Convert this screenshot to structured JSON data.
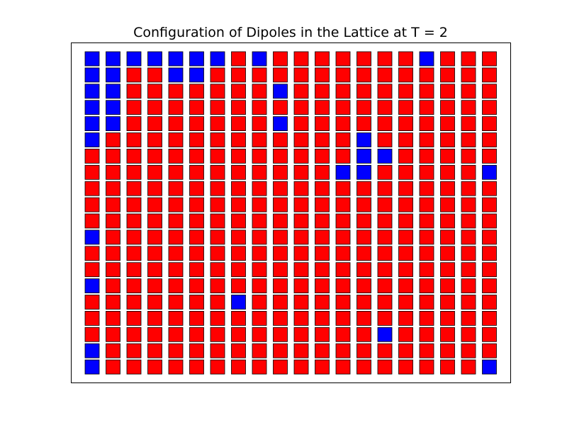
{
  "chart_data": {
    "type": "heatmap",
    "title": "Configuration of Dipoles in the Lattice at T = 2",
    "xlabel": "",
    "ylabel": "",
    "grid": false,
    "legend": "none",
    "rows": 20,
    "cols": 20,
    "states": {
      "up": 1,
      "down": -1
    },
    "colors": {
      "up": "#0000ff",
      "down": "#ff0000",
      "edge": "#000000"
    },
    "values": [
      [
        1,
        1,
        1,
        1,
        1,
        1,
        1,
        -1,
        1,
        -1,
        -1,
        -1,
        -1,
        -1,
        -1,
        -1,
        1,
        -1,
        -1,
        -1
      ],
      [
        1,
        1,
        -1,
        -1,
        1,
        1,
        -1,
        -1,
        -1,
        -1,
        -1,
        -1,
        -1,
        -1,
        -1,
        -1,
        -1,
        -1,
        -1,
        -1
      ],
      [
        1,
        1,
        -1,
        -1,
        -1,
        -1,
        -1,
        -1,
        -1,
        1,
        -1,
        -1,
        -1,
        -1,
        -1,
        -1,
        -1,
        -1,
        -1,
        -1
      ],
      [
        1,
        1,
        -1,
        -1,
        -1,
        -1,
        -1,
        -1,
        -1,
        -1,
        -1,
        -1,
        -1,
        -1,
        -1,
        -1,
        -1,
        -1,
        -1,
        -1
      ],
      [
        1,
        1,
        -1,
        -1,
        -1,
        -1,
        -1,
        -1,
        -1,
        1,
        -1,
        -1,
        -1,
        -1,
        -1,
        -1,
        -1,
        -1,
        -1,
        -1
      ],
      [
        1,
        -1,
        -1,
        -1,
        -1,
        -1,
        -1,
        -1,
        -1,
        -1,
        -1,
        -1,
        -1,
        1,
        -1,
        -1,
        -1,
        -1,
        -1,
        -1
      ],
      [
        -1,
        -1,
        -1,
        -1,
        -1,
        -1,
        -1,
        -1,
        -1,
        -1,
        -1,
        -1,
        -1,
        1,
        1,
        -1,
        -1,
        -1,
        -1,
        -1
      ],
      [
        -1,
        -1,
        -1,
        -1,
        -1,
        -1,
        -1,
        -1,
        -1,
        -1,
        -1,
        -1,
        1,
        1,
        -1,
        -1,
        -1,
        -1,
        -1,
        1
      ],
      [
        -1,
        -1,
        -1,
        -1,
        -1,
        -1,
        -1,
        -1,
        -1,
        -1,
        -1,
        -1,
        -1,
        -1,
        -1,
        -1,
        -1,
        -1,
        -1,
        -1
      ],
      [
        -1,
        -1,
        -1,
        -1,
        -1,
        -1,
        -1,
        -1,
        -1,
        -1,
        -1,
        -1,
        -1,
        -1,
        -1,
        -1,
        -1,
        -1,
        -1,
        -1
      ],
      [
        -1,
        -1,
        -1,
        -1,
        -1,
        -1,
        -1,
        -1,
        -1,
        -1,
        -1,
        -1,
        -1,
        -1,
        -1,
        -1,
        -1,
        -1,
        -1,
        -1
      ],
      [
        1,
        -1,
        -1,
        -1,
        -1,
        -1,
        -1,
        -1,
        -1,
        -1,
        -1,
        -1,
        -1,
        -1,
        -1,
        -1,
        -1,
        -1,
        -1,
        -1
      ],
      [
        -1,
        -1,
        -1,
        -1,
        -1,
        -1,
        -1,
        -1,
        -1,
        -1,
        -1,
        -1,
        -1,
        -1,
        -1,
        -1,
        -1,
        -1,
        -1,
        -1
      ],
      [
        -1,
        -1,
        -1,
        -1,
        -1,
        -1,
        -1,
        -1,
        -1,
        -1,
        -1,
        -1,
        -1,
        -1,
        -1,
        -1,
        -1,
        -1,
        -1,
        -1
      ],
      [
        1,
        -1,
        -1,
        -1,
        -1,
        -1,
        -1,
        -1,
        -1,
        -1,
        -1,
        -1,
        -1,
        -1,
        -1,
        -1,
        -1,
        -1,
        -1,
        -1
      ],
      [
        -1,
        -1,
        -1,
        -1,
        -1,
        -1,
        -1,
        1,
        -1,
        -1,
        -1,
        -1,
        -1,
        -1,
        -1,
        -1,
        -1,
        -1,
        -1,
        -1
      ],
      [
        -1,
        -1,
        -1,
        -1,
        -1,
        -1,
        -1,
        -1,
        -1,
        -1,
        -1,
        -1,
        -1,
        -1,
        -1,
        -1,
        -1,
        -1,
        -1,
        -1
      ],
      [
        -1,
        -1,
        -1,
        -1,
        -1,
        -1,
        -1,
        -1,
        -1,
        -1,
        -1,
        -1,
        -1,
        -1,
        1,
        -1,
        -1,
        -1,
        -1,
        -1
      ],
      [
        1,
        -1,
        -1,
        -1,
        -1,
        -1,
        -1,
        -1,
        -1,
        -1,
        -1,
        -1,
        -1,
        -1,
        -1,
        -1,
        -1,
        -1,
        -1,
        -1
      ],
      [
        1,
        -1,
        -1,
        -1,
        -1,
        -1,
        -1,
        -1,
        -1,
        -1,
        -1,
        -1,
        -1,
        -1,
        -1,
        -1,
        -1,
        -1,
        -1,
        1
      ]
    ]
  }
}
